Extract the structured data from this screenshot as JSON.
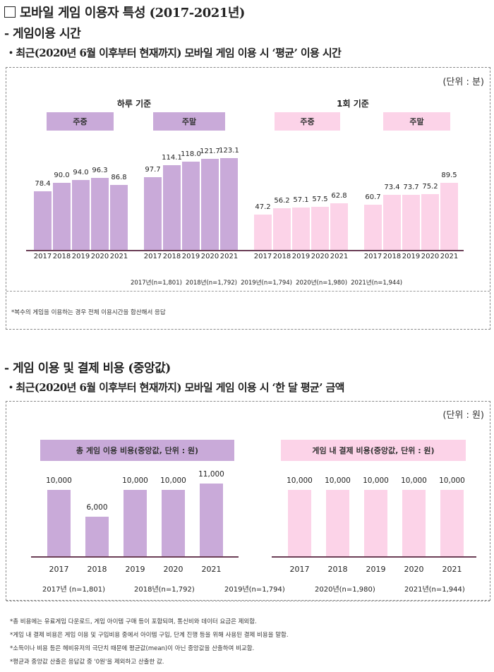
{
  "header": {
    "title": "모바일 게임 이용자 특성 (2017-2021년)",
    "section1_title": "- 게임이용 시간",
    "section1_subtitle": "・최근(2020년 6월 이후부터 현재까지) 모바일 게임 이용 시 ‘평균’ 이용 시간",
    "section2_title": "- 게임 이용 및 결제 비용 (중앙값)",
    "section2_subtitle": "・최근(2020년 6월 이후부터 현재까지) 모바일 게임 이용 시 ‘한 달 평균’ 금액"
  },
  "colors": {
    "purple": "#c9aad9",
    "pink": "#fcd3e8",
    "axis": "#6b3f56"
  },
  "chart_data": [
    {
      "type": "bar",
      "title": "게임이용 시간",
      "unit_label": "(단위 : 분)",
      "group_headers": [
        "하루 기준",
        "1회 기준"
      ],
      "categories": [
        "2017",
        "2018",
        "2019",
        "2020",
        "2021"
      ],
      "series": [
        {
          "name": "하루 기준 주중",
          "label": "주중",
          "color": "purple",
          "values": [
            78.4,
            90.0,
            94.0,
            96.3,
            86.8
          ],
          "display": [
            "78.4",
            "90.0",
            "94.0",
            "96.3",
            "86.8"
          ]
        },
        {
          "name": "하루 기준 주말",
          "label": "주말",
          "color": "purple",
          "values": [
            97.7,
            114.1,
            118.0,
            121.7,
            123.1
          ],
          "display": [
            "97.7",
            "114.1",
            "118.0",
            "121.7",
            "123.1"
          ]
        },
        {
          "name": "1회 기준 주중",
          "label": "주중",
          "color": "pink",
          "values": [
            47.2,
            56.2,
            57.1,
            57.5,
            62.8
          ],
          "display": [
            "47.2",
            "56.2",
            "57.1",
            "57.5",
            "62.8"
          ]
        },
        {
          "name": "1회 기준 주말",
          "label": "주말",
          "color": "pink",
          "values": [
            60.7,
            73.4,
            73.7,
            75.2,
            89.5
          ],
          "display": [
            "60.7",
            "73.4",
            "73.7",
            "75.2",
            "89.5"
          ]
        }
      ],
      "ylim": [
        0,
        130
      ],
      "grid": false,
      "sample_sizes": [
        "2017년(n=1,801)",
        "2018년(n=1,792)",
        "2019년(n=1,794)",
        "2020년(n=1,980)",
        "2021년(n=1,944)"
      ],
      "note": "*복수의 게임을 이용하는 경우 전체 이용시간을 합산해서 응답"
    },
    {
      "type": "bar",
      "title": "게임 이용 및 결제 비용 (중앙값)",
      "unit_label": "(단위 : 원)",
      "categories": [
        "2017",
        "2018",
        "2019",
        "2020",
        "2021"
      ],
      "series": [
        {
          "name": "총 게임 이용 비용(중앙값, 단위 : 원)",
          "color": "purple",
          "values": [
            10000,
            6000,
            10000,
            10000,
            11000
          ],
          "display": [
            "10,000",
            "6,000",
            "10,000",
            "10,000",
            "11,000"
          ]
        },
        {
          "name": "게임 내 결제 비용(중앙값, 단위 : 원)",
          "color": "pink",
          "values": [
            10000,
            10000,
            10000,
            10000,
            10000
          ],
          "display": [
            "10,000",
            "10,000",
            "10,000",
            "10,000",
            "10,000"
          ]
        }
      ],
      "ylim": [
        0,
        12000
      ],
      "grid": false,
      "sample_sizes": [
        "2017년 (n=1,801)",
        "2018년(n=1,792)",
        "2019년(n=1,794)",
        "2020년(n=1,980)",
        "2021년(n=1,944)"
      ],
      "notes": [
        "*총 비용에는 유료게임 다운로드, 게임 아이템 구매 등이 포함되며, 통신비와 데이터 요금은 제외함.",
        "*게임 내 결제 비용은 게임 이용 및 구입비용 중에서 아이템 구입, 단계 진행 등을 위해 사용된 결제 비용을 말함.",
        "*소득이나 비용 등은 헤비유저의 극단치 때문에 평균값(mean)이 아닌 중앙값을 산출하여 비교함.",
        "*평균과 중앙값 산출은 응답값 중 '0원'을 제외하고 산출한 값."
      ]
    }
  ]
}
